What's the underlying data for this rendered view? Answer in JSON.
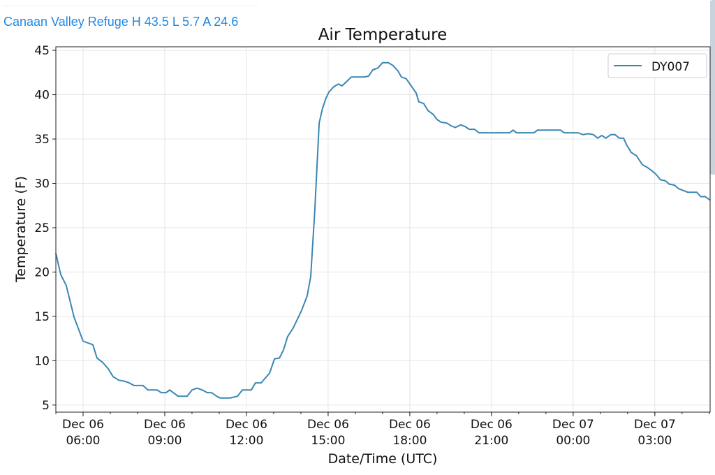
{
  "header": {
    "station_summary": "Canaan Valley Refuge H 43.5 L 5.7 A 24.6"
  },
  "colors": {
    "line": "#3a87b3",
    "grid": "#e6e6e6",
    "link": "#1e88e5"
  },
  "chart_data": {
    "type": "line",
    "title": "Air Temperature",
    "xlabel": "Date/Time (UTC)",
    "ylabel": "Temperature (F)",
    "x_units": "hours since Dec 06 00:00 UTC",
    "xlim": [
      5,
      29.03
    ],
    "ylim": [
      4.2,
      45.4
    ],
    "grid": true,
    "legend_position": "top-right",
    "yticks": [
      5,
      10,
      15,
      20,
      25,
      30,
      35,
      40,
      45
    ],
    "xticks": [
      {
        "x": 6,
        "date": "Dec 06",
        "time": "06:00"
      },
      {
        "x": 9,
        "date": "Dec 06",
        "time": "09:00"
      },
      {
        "x": 12,
        "date": "Dec 06",
        "time": "12:00"
      },
      {
        "x": 15,
        "date": "Dec 06",
        "time": "15:00"
      },
      {
        "x": 18,
        "date": "Dec 06",
        "time": "18:00"
      },
      {
        "x": 21,
        "date": "Dec 06",
        "time": "21:00"
      },
      {
        "x": 24,
        "date": "Dec 07",
        "time": "00:00"
      },
      {
        "x": 27,
        "date": "Dec 07",
        "time": "03:00"
      }
    ],
    "series": [
      {
        "name": "DY007",
        "x": [
          5.0,
          5.18,
          5.38,
          5.67,
          6.0,
          6.18,
          6.36,
          6.51,
          6.72,
          6.92,
          7.1,
          7.31,
          7.51,
          7.69,
          7.87,
          8.2,
          8.38,
          8.72,
          8.87,
          9.05,
          9.18,
          9.31,
          9.49,
          9.82,
          10.0,
          10.18,
          10.38,
          10.56,
          10.72,
          10.9,
          11.03,
          11.41,
          11.67,
          11.85,
          12.18,
          12.33,
          12.54,
          12.85,
          13.03,
          13.21,
          13.36,
          13.51,
          13.72,
          14.03,
          14.23,
          14.36,
          14.51,
          14.67,
          14.79,
          14.92,
          15.03,
          15.21,
          15.38,
          15.51,
          15.69,
          15.85,
          16.33,
          16.49,
          16.64,
          16.82,
          17.0,
          17.21,
          17.38,
          17.56,
          17.69,
          17.87,
          18.05,
          18.23,
          18.33,
          18.51,
          18.67,
          18.85,
          19.0,
          19.15,
          19.36,
          19.51,
          19.67,
          19.87,
          20.03,
          20.18,
          20.38,
          20.54,
          21.67,
          21.79,
          21.92,
          22.56,
          22.69,
          23.54,
          23.67,
          24.18,
          24.36,
          24.56,
          24.74,
          24.9,
          25.05,
          25.2,
          25.38,
          25.54,
          25.69,
          25.85,
          25.97,
          26.13,
          26.33,
          26.54,
          26.72,
          26.9,
          27.05,
          27.21,
          27.38,
          27.54,
          27.72,
          27.87,
          28.21,
          28.54,
          28.69,
          28.85,
          29.03
        ],
        "y": [
          22.1,
          19.7,
          18.5,
          14.9,
          12.2,
          12.0,
          11.8,
          10.3,
          9.8,
          9.1,
          8.2,
          7.8,
          7.7,
          7.5,
          7.2,
          7.2,
          6.7,
          6.7,
          6.4,
          6.4,
          6.7,
          6.4,
          6.0,
          6.0,
          6.7,
          6.9,
          6.7,
          6.4,
          6.4,
          6.0,
          5.8,
          5.8,
          6.0,
          6.7,
          6.7,
          7.5,
          7.5,
          8.6,
          10.2,
          10.3,
          11.2,
          12.7,
          13.7,
          15.7,
          17.3,
          19.5,
          26.9,
          36.8,
          38.4,
          39.6,
          40.3,
          40.9,
          41.2,
          41.0,
          41.5,
          42.0,
          42.0,
          42.1,
          42.8,
          43.0,
          43.6,
          43.6,
          43.3,
          42.7,
          42.0,
          41.8,
          41.0,
          40.2,
          39.2,
          39.0,
          38.2,
          37.8,
          37.2,
          36.9,
          36.8,
          36.5,
          36.3,
          36.6,
          36.4,
          36.1,
          36.1,
          35.7,
          35.7,
          36.0,
          35.7,
          35.7,
          36.0,
          36.0,
          35.7,
          35.7,
          35.5,
          35.6,
          35.5,
          35.1,
          35.4,
          35.1,
          35.5,
          35.5,
          35.1,
          35.1,
          34.3,
          33.5,
          33.1,
          32.1,
          31.8,
          31.4,
          31.0,
          30.4,
          30.3,
          29.9,
          29.8,
          29.4,
          29.0,
          29.0,
          28.5,
          28.5,
          28.1
        ]
      }
    ]
  }
}
